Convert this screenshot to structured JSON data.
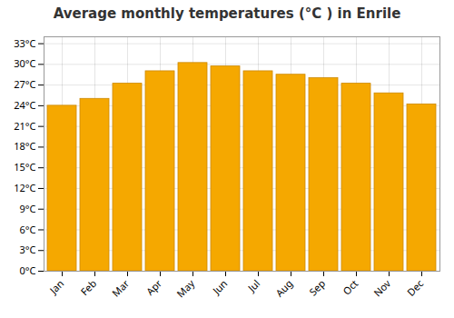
{
  "chart_data": {
    "type": "bar",
    "title": "Average monthly temperatures (°C ) in Enrile",
    "categories": [
      "Jan",
      "Feb",
      "Mar",
      "Apr",
      "May",
      "Jun",
      "Jul",
      "Aug",
      "Sep",
      "Oct",
      "Nov",
      "Dec"
    ],
    "values": [
      24.0,
      25.0,
      27.2,
      29.0,
      30.2,
      29.7,
      29.0,
      28.5,
      28.0,
      27.2,
      25.8,
      24.2
    ],
    "color": "#F5A800",
    "ylim": [
      0,
      34
    ],
    "yticks": [
      {
        "value": 0,
        "label": "0°C"
      },
      {
        "value": 3,
        "label": "3°C"
      },
      {
        "value": 6,
        "label": "6°C"
      },
      {
        "value": 9,
        "label": "9°C"
      },
      {
        "value": 12,
        "label": "12°C"
      },
      {
        "value": 15,
        "label": "15°C"
      },
      {
        "value": 18,
        "label": "18°C"
      },
      {
        "value": 21,
        "label": "21°C"
      },
      {
        "value": 24,
        "label": "24°C"
      },
      {
        "value": 27,
        "label": "27°C"
      },
      {
        "value": 30,
        "label": "30°C"
      },
      {
        "value": 33,
        "label": "33°C"
      }
    ],
    "grid": true
  }
}
